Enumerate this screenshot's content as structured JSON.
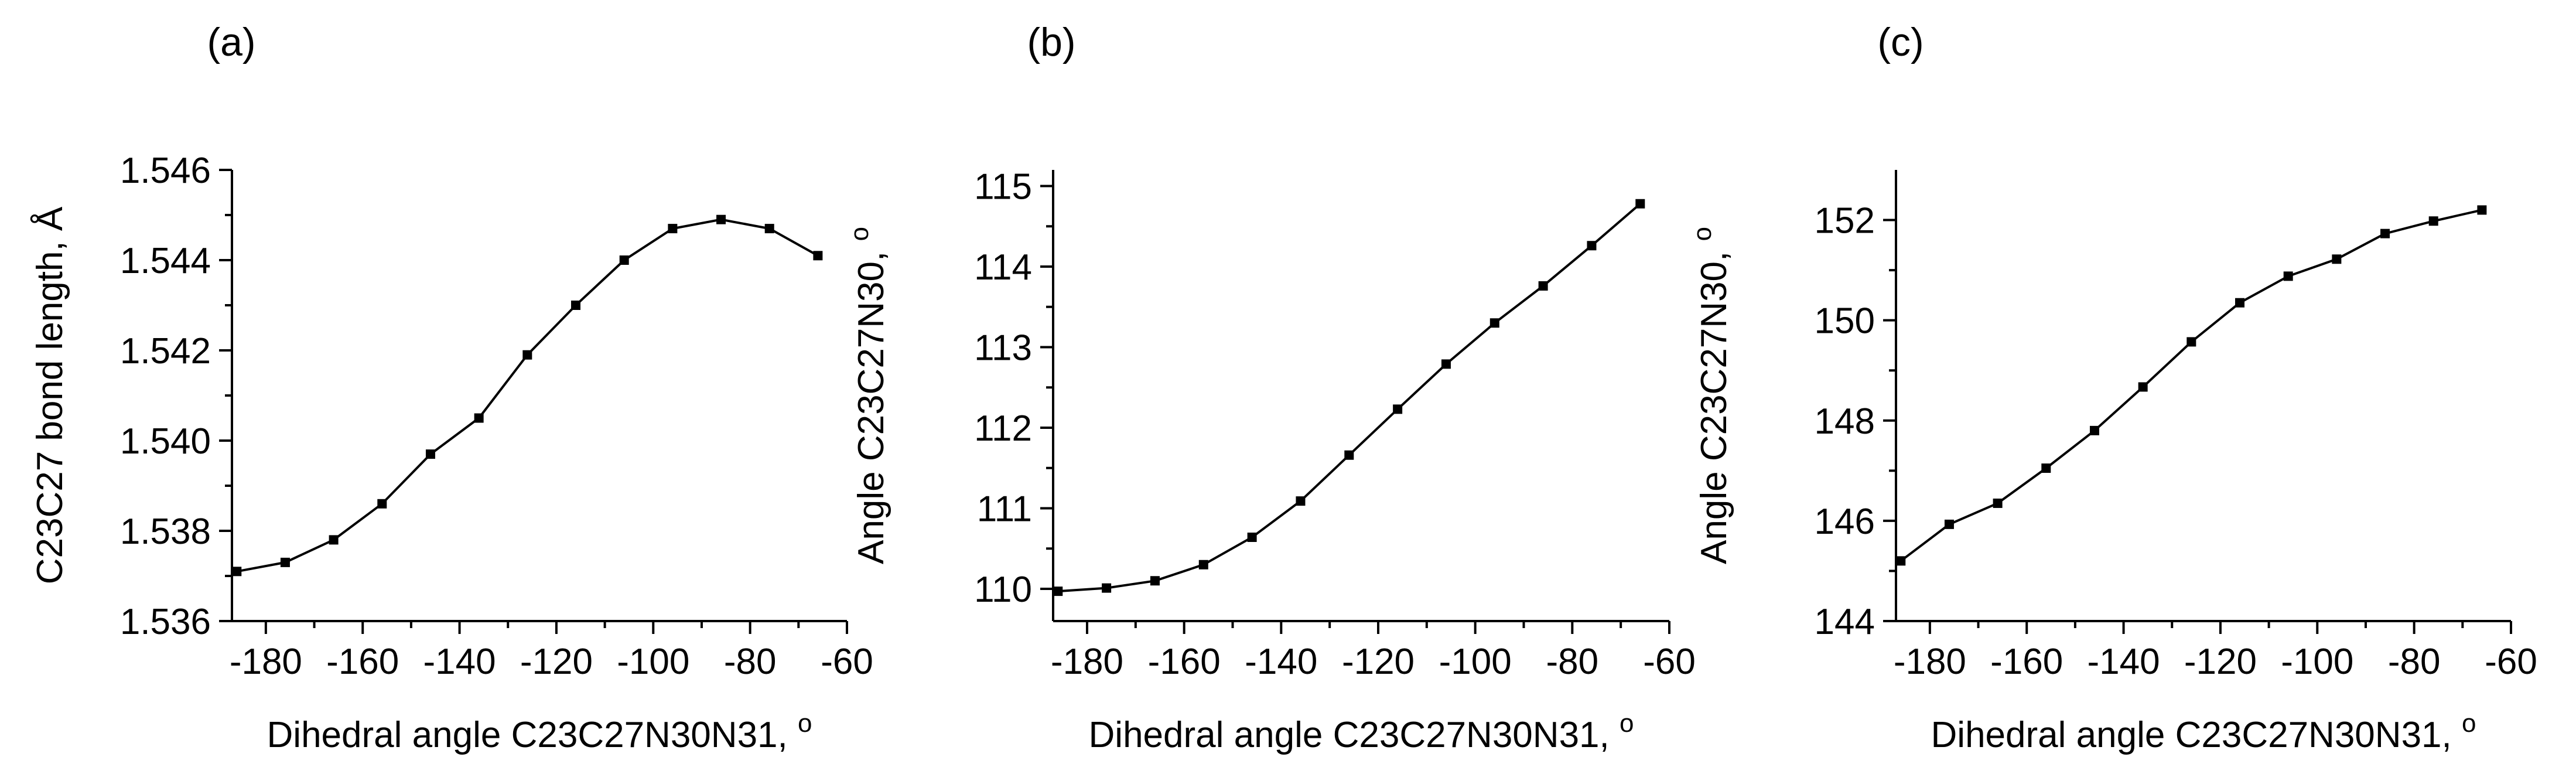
{
  "chart_data": [
    {
      "type": "line",
      "panel_label": "(a)",
      "xlabel": "Dihedral angle C23C27N30N31,",
      "xlabel_unit": "o",
      "ylabel": "C23C27 bond length,",
      "ylabel_unit": "Å",
      "xlim": [
        -187,
        -60
      ],
      "ylim": [
        1.536,
        1.546
      ],
      "xticks": [
        -180,
        -160,
        -140,
        -120,
        -100,
        -80,
        -60
      ],
      "yticks": [
        1.536,
        1.538,
        1.54,
        1.542,
        1.544,
        1.546
      ],
      "ytick_labels": [
        "1.536",
        "1.538",
        "1.540",
        "1.542",
        "1.544",
        "1.546"
      ],
      "x": [
        -186,
        -176,
        -166,
        -156,
        -146,
        -136,
        -126,
        -116,
        -106,
        -96,
        -86,
        -76,
        -66
      ],
      "y": [
        1.5371,
        1.5373,
        1.5378,
        1.5386,
        1.5397,
        1.5405,
        1.5419,
        1.543,
        1.544,
        1.5447,
        1.5449,
        1.5447,
        1.5441
      ]
    },
    {
      "type": "line",
      "panel_label": "(b)",
      "xlabel": "Dihedral angle C23C27N30N31,",
      "xlabel_unit": "o",
      "ylabel": "Angle C23C27N30,",
      "ylabel_unit": "o",
      "xlim": [
        -187,
        -60
      ],
      "ylim": [
        109.6,
        115.2
      ],
      "xticks": [
        -180,
        -160,
        -140,
        -120,
        -100,
        -80,
        -60
      ],
      "yticks": [
        110,
        111,
        112,
        113,
        114,
        115
      ],
      "ytick_labels": [
        "110",
        "111",
        "112",
        "113",
        "114",
        "115"
      ],
      "x": [
        -186,
        -176,
        -166,
        -156,
        -146,
        -136,
        -126,
        -116,
        -106,
        -96,
        -86,
        -76,
        -66
      ],
      "y": [
        109.97,
        110.01,
        110.1,
        110.3,
        110.64,
        111.09,
        111.66,
        112.23,
        112.79,
        113.3,
        113.76,
        114.26,
        114.78
      ]
    },
    {
      "type": "line",
      "panel_label": "(c)",
      "xlabel": "Dihedral angle C23C27N30N31,",
      "xlabel_unit": "o",
      "ylabel": "Angle C23C27N30,",
      "ylabel_unit": "o",
      "xlim": [
        -187,
        -60
      ],
      "ylim": [
        144,
        153
      ],
      "xticks": [
        -180,
        -160,
        -140,
        -120,
        -100,
        -80,
        -60
      ],
      "yticks": [
        144,
        146,
        148,
        150,
        152
      ],
      "ytick_labels": [
        "144",
        "146",
        "148",
        "150",
        "152"
      ],
      "x": [
        -186,
        -176,
        -166,
        -156,
        -146,
        -136,
        -126,
        -116,
        -106,
        -96,
        -86,
        -76,
        -66
      ],
      "y": [
        145.2,
        145.93,
        146.35,
        147.05,
        147.8,
        148.67,
        149.57,
        150.35,
        150.88,
        151.22,
        151.73,
        151.98,
        152.2
      ]
    }
  ]
}
